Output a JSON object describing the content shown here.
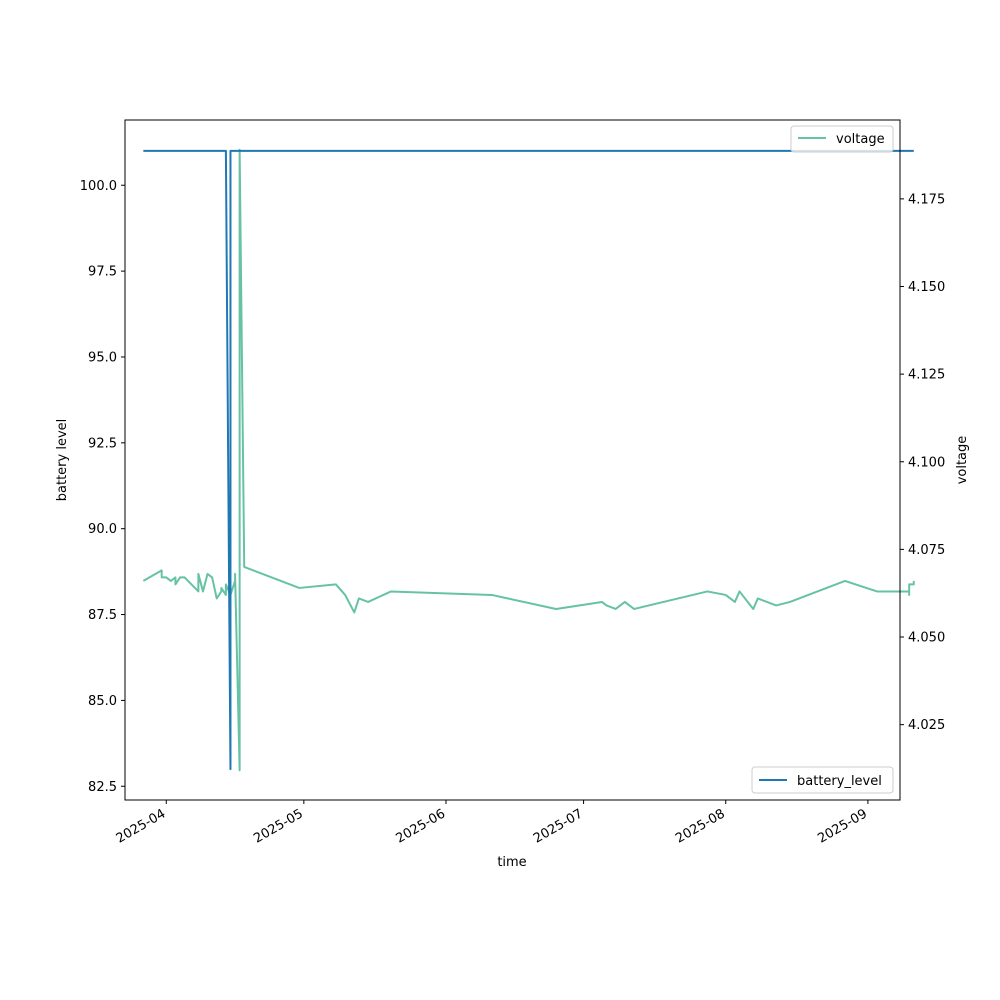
{
  "chart_data": {
    "type": "line",
    "xlabel": "time",
    "ylabel_left": "battery level",
    "ylabel_right": "voltage",
    "x_ticks": [
      "2025-04",
      "2025-05",
      "2025-06",
      "2025-07",
      "2025-08",
      "2025-09"
    ],
    "y_left_ticks": [
      "82.5",
      "85.0",
      "87.5",
      "90.0",
      "92.5",
      "95.0",
      "97.5",
      "100.0"
    ],
    "y_right_ticks": [
      "4.025",
      "4.050",
      "4.075",
      "4.100",
      "4.125",
      "4.150",
      "4.175"
    ],
    "xlim": [
      "2025-03-23",
      "2025-09-08"
    ],
    "ylim_left": [
      82.1,
      101.9
    ],
    "ylim_right": [
      4.0035,
      4.1975
    ],
    "grid": false,
    "series": [
      {
        "name": "voltage",
        "axis": "right",
        "color": "#66c2a5",
        "legend_position": "upper right",
        "points": [
          [
            "2025-03-27",
            4.066
          ],
          [
            "2025-03-31",
            4.069
          ],
          [
            "2025-03-31",
            4.067
          ],
          [
            "2025-04-01",
            4.067
          ],
          [
            "2025-04-02",
            4.066
          ],
          [
            "2025-04-03",
            4.067
          ],
          [
            "2025-04-03",
            4.065
          ],
          [
            "2025-04-04",
            4.067
          ],
          [
            "2025-04-05",
            4.067
          ],
          [
            "2025-04-08",
            4.063
          ],
          [
            "2025-04-08",
            4.068
          ],
          [
            "2025-04-09",
            4.063
          ],
          [
            "2025-04-10",
            4.068
          ],
          [
            "2025-04-11",
            4.067
          ],
          [
            "2025-04-12",
            4.061
          ],
          [
            "2025-04-13",
            4.063
          ],
          [
            "2025-04-13",
            4.064
          ],
          [
            "2025-04-14",
            4.062
          ],
          [
            "2025-04-14",
            4.065
          ],
          [
            "2025-04-15",
            4.062
          ],
          [
            "2025-04-16",
            4.066
          ],
          [
            "2025-04-16",
            4.068
          ],
          [
            "2025-04-17",
            4.012
          ],
          [
            "2025-04-17",
            4.189
          ],
          [
            "2025-04-18",
            4.07
          ],
          [
            "2025-04-30",
            4.064
          ],
          [
            "2025-05-08",
            4.065
          ],
          [
            "2025-05-10",
            4.062
          ],
          [
            "2025-05-12",
            4.057
          ],
          [
            "2025-05-13",
            4.061
          ],
          [
            "2025-05-15",
            4.06
          ],
          [
            "2025-05-20",
            4.063
          ],
          [
            "2025-06-11",
            4.062
          ],
          [
            "2025-06-25",
            4.058
          ],
          [
            "2025-07-05",
            4.06
          ],
          [
            "2025-07-06",
            4.059
          ],
          [
            "2025-07-08",
            4.058
          ],
          [
            "2025-07-10",
            4.06
          ],
          [
            "2025-07-12",
            4.058
          ],
          [
            "2025-07-28",
            4.063
          ],
          [
            "2025-08-01",
            4.062
          ],
          [
            "2025-08-03",
            4.06
          ],
          [
            "2025-08-04",
            4.063
          ],
          [
            "2025-08-07",
            4.058
          ],
          [
            "2025-08-08",
            4.061
          ],
          [
            "2025-08-12",
            4.059
          ],
          [
            "2025-08-15",
            4.06
          ],
          [
            "2025-08-27",
            4.066
          ],
          [
            "2025-09-03",
            4.063
          ],
          [
            "2025-09-10",
            4.063
          ],
          [
            "2025-09-10",
            4.062
          ],
          [
            "2025-09-10",
            4.065
          ],
          [
            "2025-09-11",
            4.065
          ],
          [
            "2025-09-11",
            4.066
          ]
        ]
      },
      {
        "name": "battery_level",
        "axis": "left",
        "color": "#1f77b4",
        "legend_position": "lower right",
        "points": [
          [
            "2025-03-27",
            101
          ],
          [
            "2025-04-14",
            101
          ],
          [
            "2025-04-15",
            83
          ],
          [
            "2025-04-15",
            101
          ],
          [
            "2025-09-11",
            101
          ]
        ]
      }
    ]
  }
}
